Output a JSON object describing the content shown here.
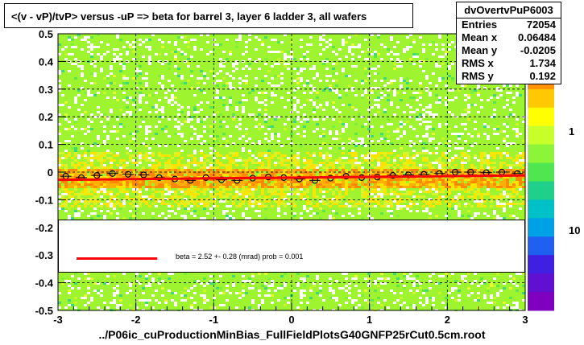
{
  "title": "<(v - vP)/tvP> versus  -uP => beta for barrel 3, layer 6 ladder 3, all wafers",
  "stats": {
    "name": "dvOvertvPuP6003",
    "rows": [
      {
        "label": "Entries",
        "value": "72054"
      },
      {
        "label": "Mean x",
        "value": "0.06484"
      },
      {
        "label": "Mean y",
        "value": "-0.0205"
      },
      {
        "label": "RMS x",
        "value": "1.734"
      },
      {
        "label": "RMS y",
        "value": "0.192"
      }
    ]
  },
  "fit_text": "beta =     2.52 +-  0.28 (mrad) prob = 0.001",
  "footer": "../P06ic_cuProductionMinBias_FullFieldPlotsG40GNFP25rCut0.5cm.root",
  "colors": {
    "background": "#9ef52f",
    "fit": "#ff0000",
    "hot": "#ff8a00",
    "warm": "#ffe400"
  },
  "chart_data": {
    "type": "heatmap",
    "title": "<(v - vP)/tvP> versus  -uP => beta for barrel 3, layer 6 ladder 3, all wafers",
    "xlim": [
      -3,
      3
    ],
    "ylim": [
      -0.5,
      0.5
    ],
    "x_ticks": [
      "-3",
      "-2",
      "-1",
      "0",
      "1",
      "2",
      "3"
    ],
    "y_ticks": [
      "-0.5",
      "-0.4",
      "-0.3",
      "-0.2",
      "-0.1",
      "0",
      "0.1",
      "0.2",
      "0.3",
      "0.4",
      "0.5"
    ],
    "z_ticks": [
      "1",
      "10"
    ],
    "z_scale": "log",
    "grid": true,
    "profile_points": {
      "x": [
        -2.9,
        -2.7,
        -2.5,
        -2.3,
        -2.1,
        -1.9,
        -1.7,
        -1.5,
        -1.3,
        -1.1,
        -0.9,
        -0.7,
        -0.5,
        -0.3,
        -0.1,
        0.1,
        0.3,
        0.5,
        0.7,
        0.9,
        1.1,
        1.3,
        1.5,
        1.7,
        1.9,
        2.1,
        2.3,
        2.5,
        2.7,
        2.9
      ],
      "y": [
        -0.015,
        -0.02,
        -0.012,
        -0.005,
        -0.008,
        -0.01,
        -0.02,
        -0.025,
        -0.03,
        -0.02,
        -0.028,
        -0.03,
        -0.022,
        -0.018,
        -0.02,
        -0.025,
        -0.03,
        -0.022,
        -0.015,
        -0.02,
        -0.018,
        -0.012,
        -0.01,
        -0.008,
        -0.005,
        0.0,
        0.0,
        -0.002,
        0.0,
        -0.005
      ]
    },
    "fit_line": {
      "x": [
        -3,
        3
      ],
      "y": [
        -0.028,
        -0.012
      ]
    }
  }
}
